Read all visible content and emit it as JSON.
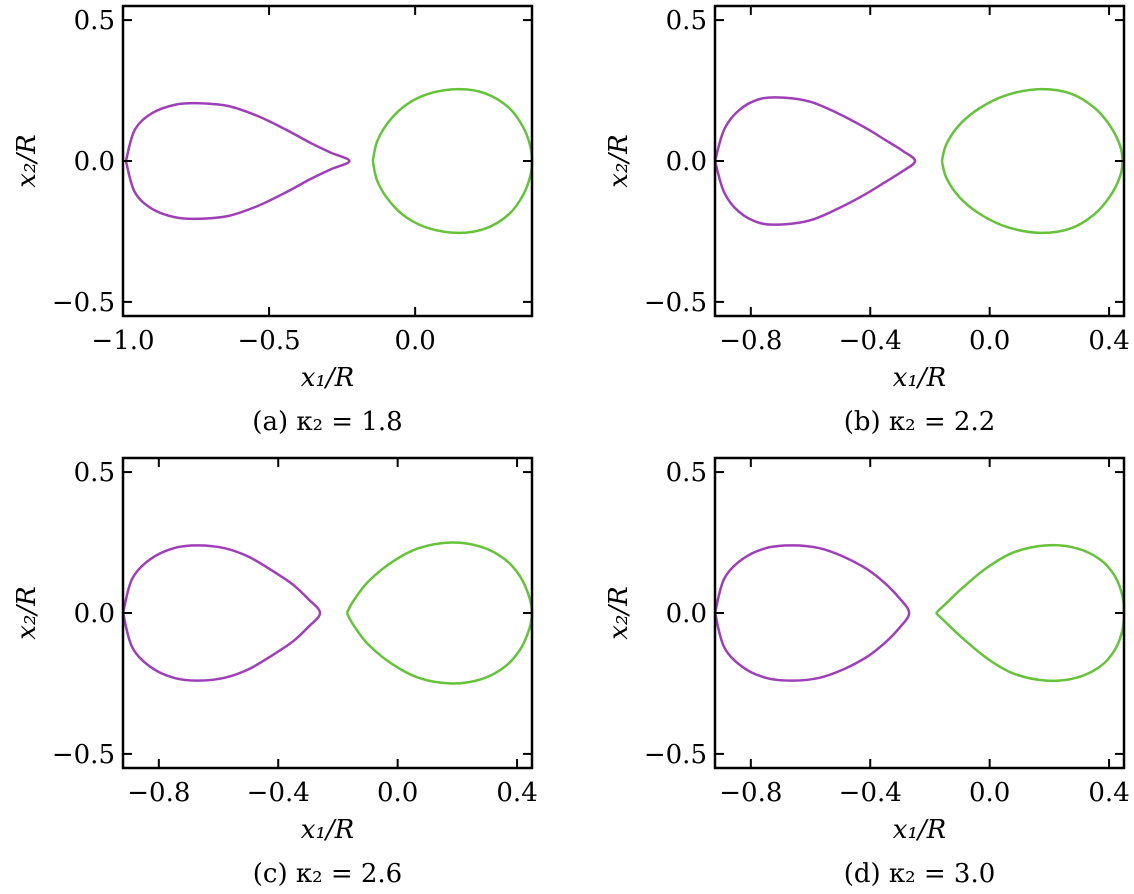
{
  "chart_data": [
    {
      "type": "line",
      "caption": "(a) κ₂ = 1.8",
      "xlabel": "x₁/R",
      "ylabel": "x₂/R",
      "xlim": [
        -1.0,
        0.4
      ],
      "ylim": [
        -0.55,
        0.55
      ],
      "xticks": [
        -1.0,
        -0.5,
        0.0
      ],
      "xtick_labels": [
        "−1.0",
        "−0.5",
        "0.0"
      ],
      "yticks": [
        0.5,
        0.0,
        -0.5
      ],
      "ytick_labels": [
        "0.5",
        "0.0",
        "−0.5"
      ],
      "series": [
        {
          "color": "#9e3fb8",
          "x": [
            -0.99,
            -0.96,
            -0.9,
            -0.82,
            -0.74,
            -0.64,
            -0.54,
            -0.44,
            -0.36,
            -0.29,
            -0.225,
            -0.29,
            -0.36,
            -0.44,
            -0.54,
            -0.64,
            -0.74,
            -0.82,
            -0.9,
            -0.96,
            -0.99
          ],
          "y": [
            0.0,
            0.11,
            0.17,
            0.2,
            0.205,
            0.195,
            0.16,
            0.11,
            0.065,
            0.03,
            0.0,
            -0.03,
            -0.065,
            -0.11,
            -0.16,
            -0.195,
            -0.205,
            -0.2,
            -0.17,
            -0.11,
            0.0
          ]
        },
        {
          "color": "#66c23a",
          "x": [
            -0.145,
            -0.13,
            -0.09,
            -0.03,
            0.05,
            0.15,
            0.24,
            0.32,
            0.37,
            0.395,
            0.4,
            0.395,
            0.37,
            0.32,
            0.24,
            0.15,
            0.05,
            -0.03,
            -0.09,
            -0.13,
            -0.145
          ],
          "y": [
            0.0,
            0.07,
            0.14,
            0.2,
            0.24,
            0.255,
            0.24,
            0.19,
            0.12,
            0.05,
            0.0,
            -0.05,
            -0.12,
            -0.19,
            -0.24,
            -0.255,
            -0.24,
            -0.2,
            -0.14,
            -0.07,
            0.0
          ]
        }
      ]
    },
    {
      "type": "line",
      "caption": "(b) κ₂ = 2.2",
      "xlabel": "x₁/R",
      "ylabel": "x₂/R",
      "xlim": [
        -0.92,
        0.45
      ],
      "ylim": [
        -0.55,
        0.55
      ],
      "xticks": [
        -0.8,
        -0.4,
        0.0,
        0.4
      ],
      "xtick_labels": [
        "−0.8",
        "−0.4",
        "0.0",
        "0.4"
      ],
      "yticks": [
        0.5,
        0.0,
        -0.5
      ],
      "ytick_labels": [
        "0.5",
        "0.0",
        "−0.5"
      ],
      "series": [
        {
          "color": "#9e3fb8",
          "x": [
            -0.92,
            -0.89,
            -0.84,
            -0.77,
            -0.69,
            -0.6,
            -0.51,
            -0.42,
            -0.35,
            -0.29,
            -0.25,
            -0.29,
            -0.35,
            -0.42,
            -0.51,
            -0.6,
            -0.69,
            -0.77,
            -0.84,
            -0.89,
            -0.92
          ],
          "y": [
            0.0,
            0.11,
            0.18,
            0.22,
            0.225,
            0.21,
            0.17,
            0.12,
            0.075,
            0.035,
            0.0,
            -0.035,
            -0.075,
            -0.12,
            -0.17,
            -0.21,
            -0.225,
            -0.22,
            -0.18,
            -0.11,
            0.0
          ]
        },
        {
          "color": "#66c23a",
          "x": [
            -0.16,
            -0.145,
            -0.1,
            -0.03,
            0.06,
            0.17,
            0.27,
            0.35,
            0.4,
            0.435,
            0.445,
            0.435,
            0.4,
            0.35,
            0.27,
            0.17,
            0.06,
            -0.03,
            -0.1,
            -0.145,
            -0.16
          ],
          "y": [
            0.0,
            0.06,
            0.13,
            0.19,
            0.235,
            0.255,
            0.24,
            0.19,
            0.13,
            0.06,
            0.0,
            -0.06,
            -0.13,
            -0.19,
            -0.24,
            -0.255,
            -0.235,
            -0.19,
            -0.13,
            -0.06,
            0.0
          ]
        }
      ]
    },
    {
      "type": "line",
      "caption": "(c) κ₂ = 2.6",
      "xlabel": "x₁/R",
      "ylabel": "x₂/R",
      "xlim": [
        -0.92,
        0.45
      ],
      "ylim": [
        -0.55,
        0.55
      ],
      "xticks": [
        -0.8,
        -0.4,
        0.0,
        0.4
      ],
      "xtick_labels": [
        "−0.8",
        "−0.4",
        "0.0",
        "0.4"
      ],
      "yticks": [
        0.5,
        0.0,
        -0.5
      ],
      "ytick_labels": [
        "0.5",
        "0.0",
        "−0.5"
      ],
      "series": [
        {
          "color": "#9e3fb8",
          "x": [
            -0.92,
            -0.89,
            -0.83,
            -0.75,
            -0.67,
            -0.58,
            -0.5,
            -0.42,
            -0.35,
            -0.3,
            -0.26,
            -0.3,
            -0.35,
            -0.42,
            -0.5,
            -0.58,
            -0.67,
            -0.75,
            -0.83,
            -0.89,
            -0.92
          ],
          "y": [
            0.0,
            0.12,
            0.19,
            0.23,
            0.24,
            0.23,
            0.2,
            0.15,
            0.1,
            0.05,
            0.0,
            -0.05,
            -0.1,
            -0.15,
            -0.2,
            -0.23,
            -0.24,
            -0.23,
            -0.19,
            -0.12,
            0.0
          ]
        },
        {
          "color": "#66c23a",
          "x": [
            -0.17,
            -0.15,
            -0.1,
            -0.02,
            0.07,
            0.18,
            0.28,
            0.36,
            0.41,
            0.44,
            0.45,
            0.44,
            0.41,
            0.36,
            0.28,
            0.18,
            0.07,
            -0.02,
            -0.1,
            -0.15,
            -0.17
          ],
          "y": [
            0.0,
            0.04,
            0.11,
            0.18,
            0.23,
            0.25,
            0.235,
            0.19,
            0.13,
            0.06,
            0.0,
            -0.06,
            -0.13,
            -0.19,
            -0.235,
            -0.25,
            -0.23,
            -0.18,
            -0.11,
            -0.04,
            0.0
          ]
        }
      ]
    },
    {
      "type": "line",
      "caption": "(d) κ₂ = 3.0",
      "xlabel": "x₁/R",
      "ylabel": "x₂/R",
      "xlim": [
        -0.92,
        0.45
      ],
      "ylim": [
        -0.55,
        0.55
      ],
      "xticks": [
        -0.8,
        -0.4,
        0.0,
        0.4
      ],
      "xtick_labels": [
        "−0.8",
        "−0.4",
        "0.0",
        "0.4"
      ],
      "yticks": [
        0.5,
        0.0,
        -0.5
      ],
      "ytick_labels": [
        "0.5",
        "0.0",
        "−0.5"
      ],
      "series": [
        {
          "color": "#9e3fb8",
          "x": [
            -0.92,
            -0.89,
            -0.83,
            -0.75,
            -0.66,
            -0.57,
            -0.49,
            -0.41,
            -0.35,
            -0.3,
            -0.27,
            -0.3,
            -0.35,
            -0.41,
            -0.49,
            -0.57,
            -0.66,
            -0.75,
            -0.83,
            -0.89,
            -0.92
          ],
          "y": [
            0.0,
            0.12,
            0.19,
            0.23,
            0.24,
            0.23,
            0.2,
            0.155,
            0.105,
            0.05,
            0.0,
            -0.05,
            -0.105,
            -0.155,
            -0.2,
            -0.23,
            -0.24,
            -0.23,
            -0.19,
            -0.12,
            0.0
          ]
        },
        {
          "color": "#66c23a",
          "x": [
            -0.18,
            -0.15,
            -0.09,
            -0.01,
            0.08,
            0.19,
            0.29,
            0.37,
            0.42,
            0.445,
            0.45,
            0.445,
            0.42,
            0.37,
            0.29,
            0.19,
            0.08,
            -0.01,
            -0.09,
            -0.15,
            -0.18
          ],
          "y": [
            0.0,
            0.03,
            0.09,
            0.16,
            0.215,
            0.24,
            0.23,
            0.19,
            0.13,
            0.06,
            0.0,
            -0.06,
            -0.13,
            -0.19,
            -0.23,
            -0.24,
            -0.215,
            -0.16,
            -0.09,
            -0.03,
            0.0
          ]
        }
      ]
    }
  ]
}
